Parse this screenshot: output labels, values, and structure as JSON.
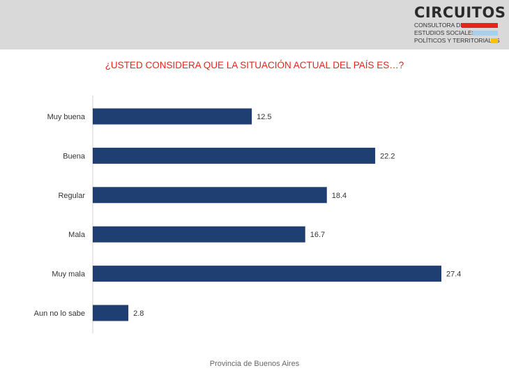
{
  "logo": {
    "name": "CIRCUITOS",
    "lines": [
      "CONSULTORA DE",
      "ESTUDIOS SOCIALES,",
      "POLÍTICOS Y TERRITORIALES"
    ],
    "bar_colors": [
      "#e8231c",
      "#a9cfee",
      "#f5c400"
    ]
  },
  "chart_data": {
    "type": "bar",
    "orientation": "horizontal",
    "title": "¿USTED CONSIDERA QUE LA SITUACIÓN ACTUAL DEL PAÍS ES…?",
    "categories": [
      "Muy buena",
      "Buena",
      "Regular",
      "Mala",
      "Muy mala",
      "Aun no lo sabe"
    ],
    "values": [
      12.5,
      22.2,
      18.4,
      16.7,
      27.4,
      2.8
    ],
    "xlim": [
      0,
      27.4
    ],
    "bar_color": "#1f3f73",
    "grid": false,
    "legend": "none"
  },
  "footer": "Provincia de Buenos Aires"
}
